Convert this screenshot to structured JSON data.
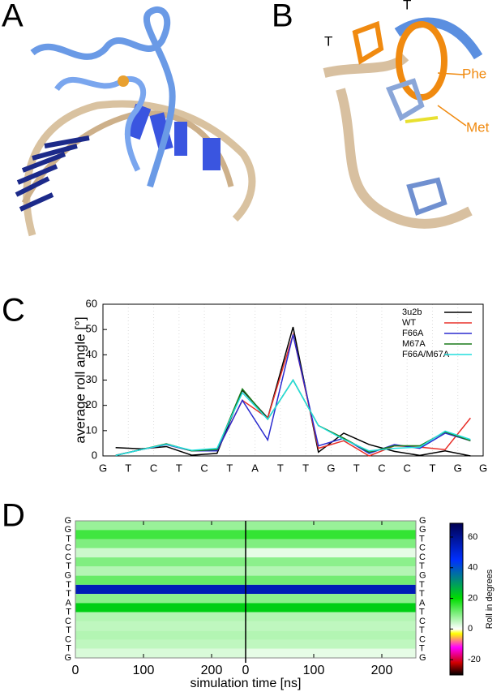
{
  "panels": {
    "A": {
      "label": "A"
    },
    "B": {
      "label": "B",
      "annotations": [
        "T",
        "T",
        "Phe",
        "Met"
      ]
    }
  },
  "chart_data": [
    {
      "type": "line",
      "panel_label": "C",
      "ylabel": "average roll angle [°]",
      "xlim": [
        0,
        15
      ],
      "xticks": [
        {
          "value": 0,
          "label": "G"
        },
        {
          "value": 1,
          "label": "T"
        },
        {
          "value": 2,
          "label": "C"
        },
        {
          "value": 3,
          "label": "T"
        },
        {
          "value": 4,
          "label": "C"
        },
        {
          "value": 5,
          "label": "T"
        },
        {
          "value": 6,
          "label": "A"
        },
        {
          "value": 7,
          "label": "T"
        },
        {
          "value": 8,
          "label": "T"
        },
        {
          "value": 9,
          "label": "G"
        },
        {
          "value": 10,
          "label": "T"
        },
        {
          "value": 11,
          "label": "C"
        },
        {
          "value": 12,
          "label": "C"
        },
        {
          "value": 13,
          "label": "T"
        },
        {
          "value": 14,
          "label": "G"
        },
        {
          "value": 15,
          "label": "G"
        }
      ],
      "ylim": [
        0,
        60
      ],
      "yticks": [
        0,
        10,
        20,
        30,
        40,
        50,
        60
      ],
      "grid": true,
      "legend": "top-right",
      "x": [
        0.5,
        1.5,
        2.5,
        3.5,
        4.5,
        5.5,
        6.5,
        7.5,
        8.5,
        9.5,
        10.5,
        11.5,
        12.5,
        13.5,
        14.5
      ],
      "series": [
        {
          "name": "3u2b",
          "color": "#000000",
          "values": [
            3.3,
            2.8,
            3.7,
            0.3,
            1.0,
            26,
            15,
            51,
            1.5,
            9,
            4.5,
            1.8,
            0.2,
            2,
            0
          ]
        },
        {
          "name": "WT",
          "color": "#e8302a",
          "values": [
            0.3,
            2.5,
            4.5,
            2,
            2,
            22,
            15,
            48,
            3,
            6,
            0,
            4,
            3.5,
            2.5,
            15
          ]
        },
        {
          "name": "F66A",
          "color": "#2b2bcf",
          "values": [
            0.2,
            2.5,
            4.5,
            2,
            2,
            22,
            6.3,
            48,
            4,
            7,
            1,
            4.5,
            3,
            9,
            6
          ]
        },
        {
          "name": "M67A",
          "color": "#1a7a1a",
          "values": [
            0.2,
            2.5,
            4.8,
            2,
            2.5,
            26.5,
            14.5,
            30,
            12,
            7,
            1.5,
            4,
            4,
            9.5,
            6
          ]
        },
        {
          "name": "F66A/M67A",
          "color": "#22dede",
          "values": [
            0.2,
            2.5,
            4.6,
            2.2,
            3,
            25,
            14.5,
            30,
            12,
            6.5,
            2,
            3,
            3.5,
            9.8,
            6.5
          ]
        }
      ]
    },
    {
      "type": "heatmap",
      "panel_label": "D",
      "xlabel": "simulation time [ns]",
      "row_labels": [
        "G",
        "G",
        "T",
        "C",
        "C",
        "T",
        "G",
        "T",
        "T",
        "A",
        "T",
        "C",
        "T",
        "C",
        "T",
        "G"
      ],
      "xlim": [
        0,
        250
      ],
      "xticks": [
        0,
        100,
        200
      ],
      "series": [
        {
          "values": [
            8,
            15,
            10,
            4,
            10,
            6,
            12,
            55,
            9,
            22,
            6,
            5,
            6,
            5,
            3
          ]
        },
        {
          "values": [
            8,
            16,
            10,
            2,
            9,
            6,
            11,
            55,
            9,
            22,
            6,
            5,
            6,
            5,
            2
          ]
        }
      ],
      "colorbar": {
        "label": "Roll in degrees",
        "lim": [
          -30,
          69
        ],
        "ticks": [
          -20,
          0,
          20,
          40,
          60
        ],
        "colormap": [
          [
            -30,
            "#000000"
          ],
          [
            -22,
            "#d00000"
          ],
          [
            -12,
            "#ff00ff"
          ],
          [
            -3,
            "#ffff00"
          ],
          [
            0,
            "#ffffff"
          ],
          [
            20,
            "#00dd00"
          ],
          [
            45,
            "#0030ff"
          ],
          [
            69,
            "#000050"
          ]
        ]
      }
    }
  ]
}
